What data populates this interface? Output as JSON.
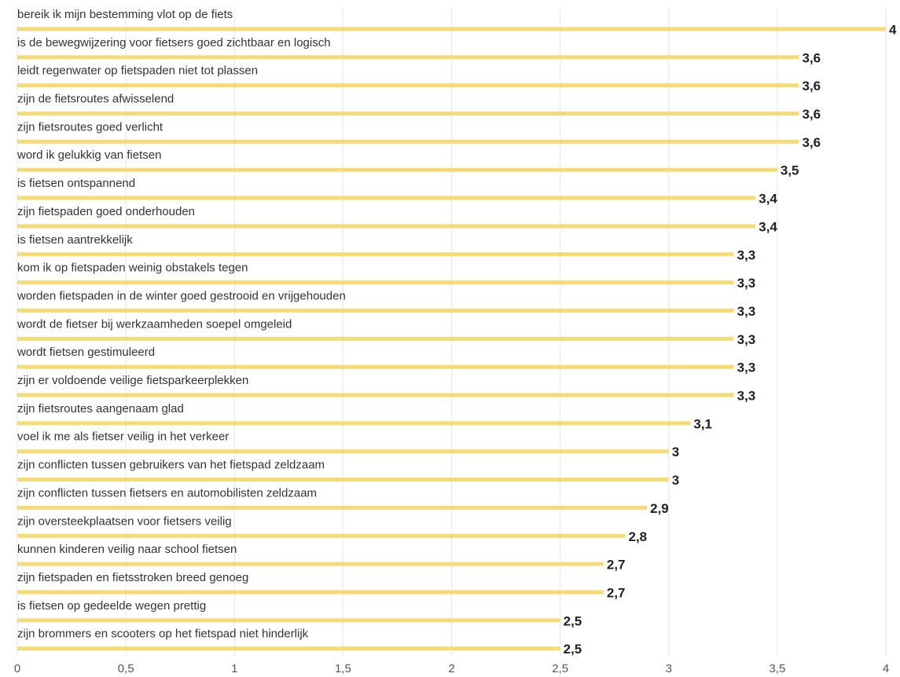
{
  "chart_data": {
    "type": "hbar",
    "categories": [
      "bereik ik mijn bestemming vlot op de fiets",
      "is de bewegwijzering voor fietsers goed zichtbaar en logisch",
      "leidt regenwater op fietspaden niet tot plassen",
      "zijn de fietsroutes afwisselend",
      "zijn fietsroutes goed verlicht",
      "word ik gelukkig van fietsen",
      "is fietsen ontspannend",
      "zijn fietspaden goed onderhouden",
      "is fietsen aantrekkelijk",
      "kom ik op fietspaden weinig obstakels tegen",
      "worden fietspaden in de winter goed gestrooid en vrijgehouden",
      "wordt de fietser bij werkzaamheden soepel omgeleid",
      "wordt fietsen gestimuleerd",
      "zijn er voldoende veilige fietsparkeerplekken",
      "zijn fietsroutes aangenaam glad",
      "voel ik me als fietser veilig in het verkeer",
      "zijn conflicten tussen gebruikers van het fietspad zeldzaam",
      "zijn conflicten tussen fietsers en automobilisten zeldzaam",
      "zijn oversteekplaatsen voor fietsers veilig",
      "kunnen kinderen veilig naar school fietsen",
      "zijn fietspaden en fietsstroken breed genoeg",
      "is fietsen op gedeelde wegen prettig",
      "zijn brommers en scooters op het fietspad niet hinderlijk"
    ],
    "values": [
      4,
      3.6,
      3.6,
      3.6,
      3.6,
      3.5,
      3.4,
      3.4,
      3.3,
      3.3,
      3.3,
      3.3,
      3.3,
      3.3,
      3.1,
      3,
      3,
      2.9,
      2.8,
      2.7,
      2.7,
      2.5,
      2.5
    ],
    "value_labels": [
      "4",
      "3,6",
      "3,6",
      "3,6",
      "3,6",
      "3,5",
      "3,4",
      "3,4",
      "3,3",
      "3,3",
      "3,3",
      "3,3",
      "3,3",
      "3,3",
      "3,1",
      "3",
      "3",
      "2,9",
      "2,8",
      "2,7",
      "2,7",
      "2,5",
      "2,5"
    ],
    "color": "#f6da76",
    "xlim": [
      0,
      4
    ],
    "xticks": [
      0,
      {
        "value": 0.5,
        "label": "0,5"
      },
      1,
      {
        "value": 1.5,
        "label": "1,5"
      },
      2,
      {
        "value": 2.5,
        "label": "2,5"
      },
      3,
      {
        "value": 3.5,
        "label": "3,5"
      },
      4
    ],
    "grid": true
  }
}
